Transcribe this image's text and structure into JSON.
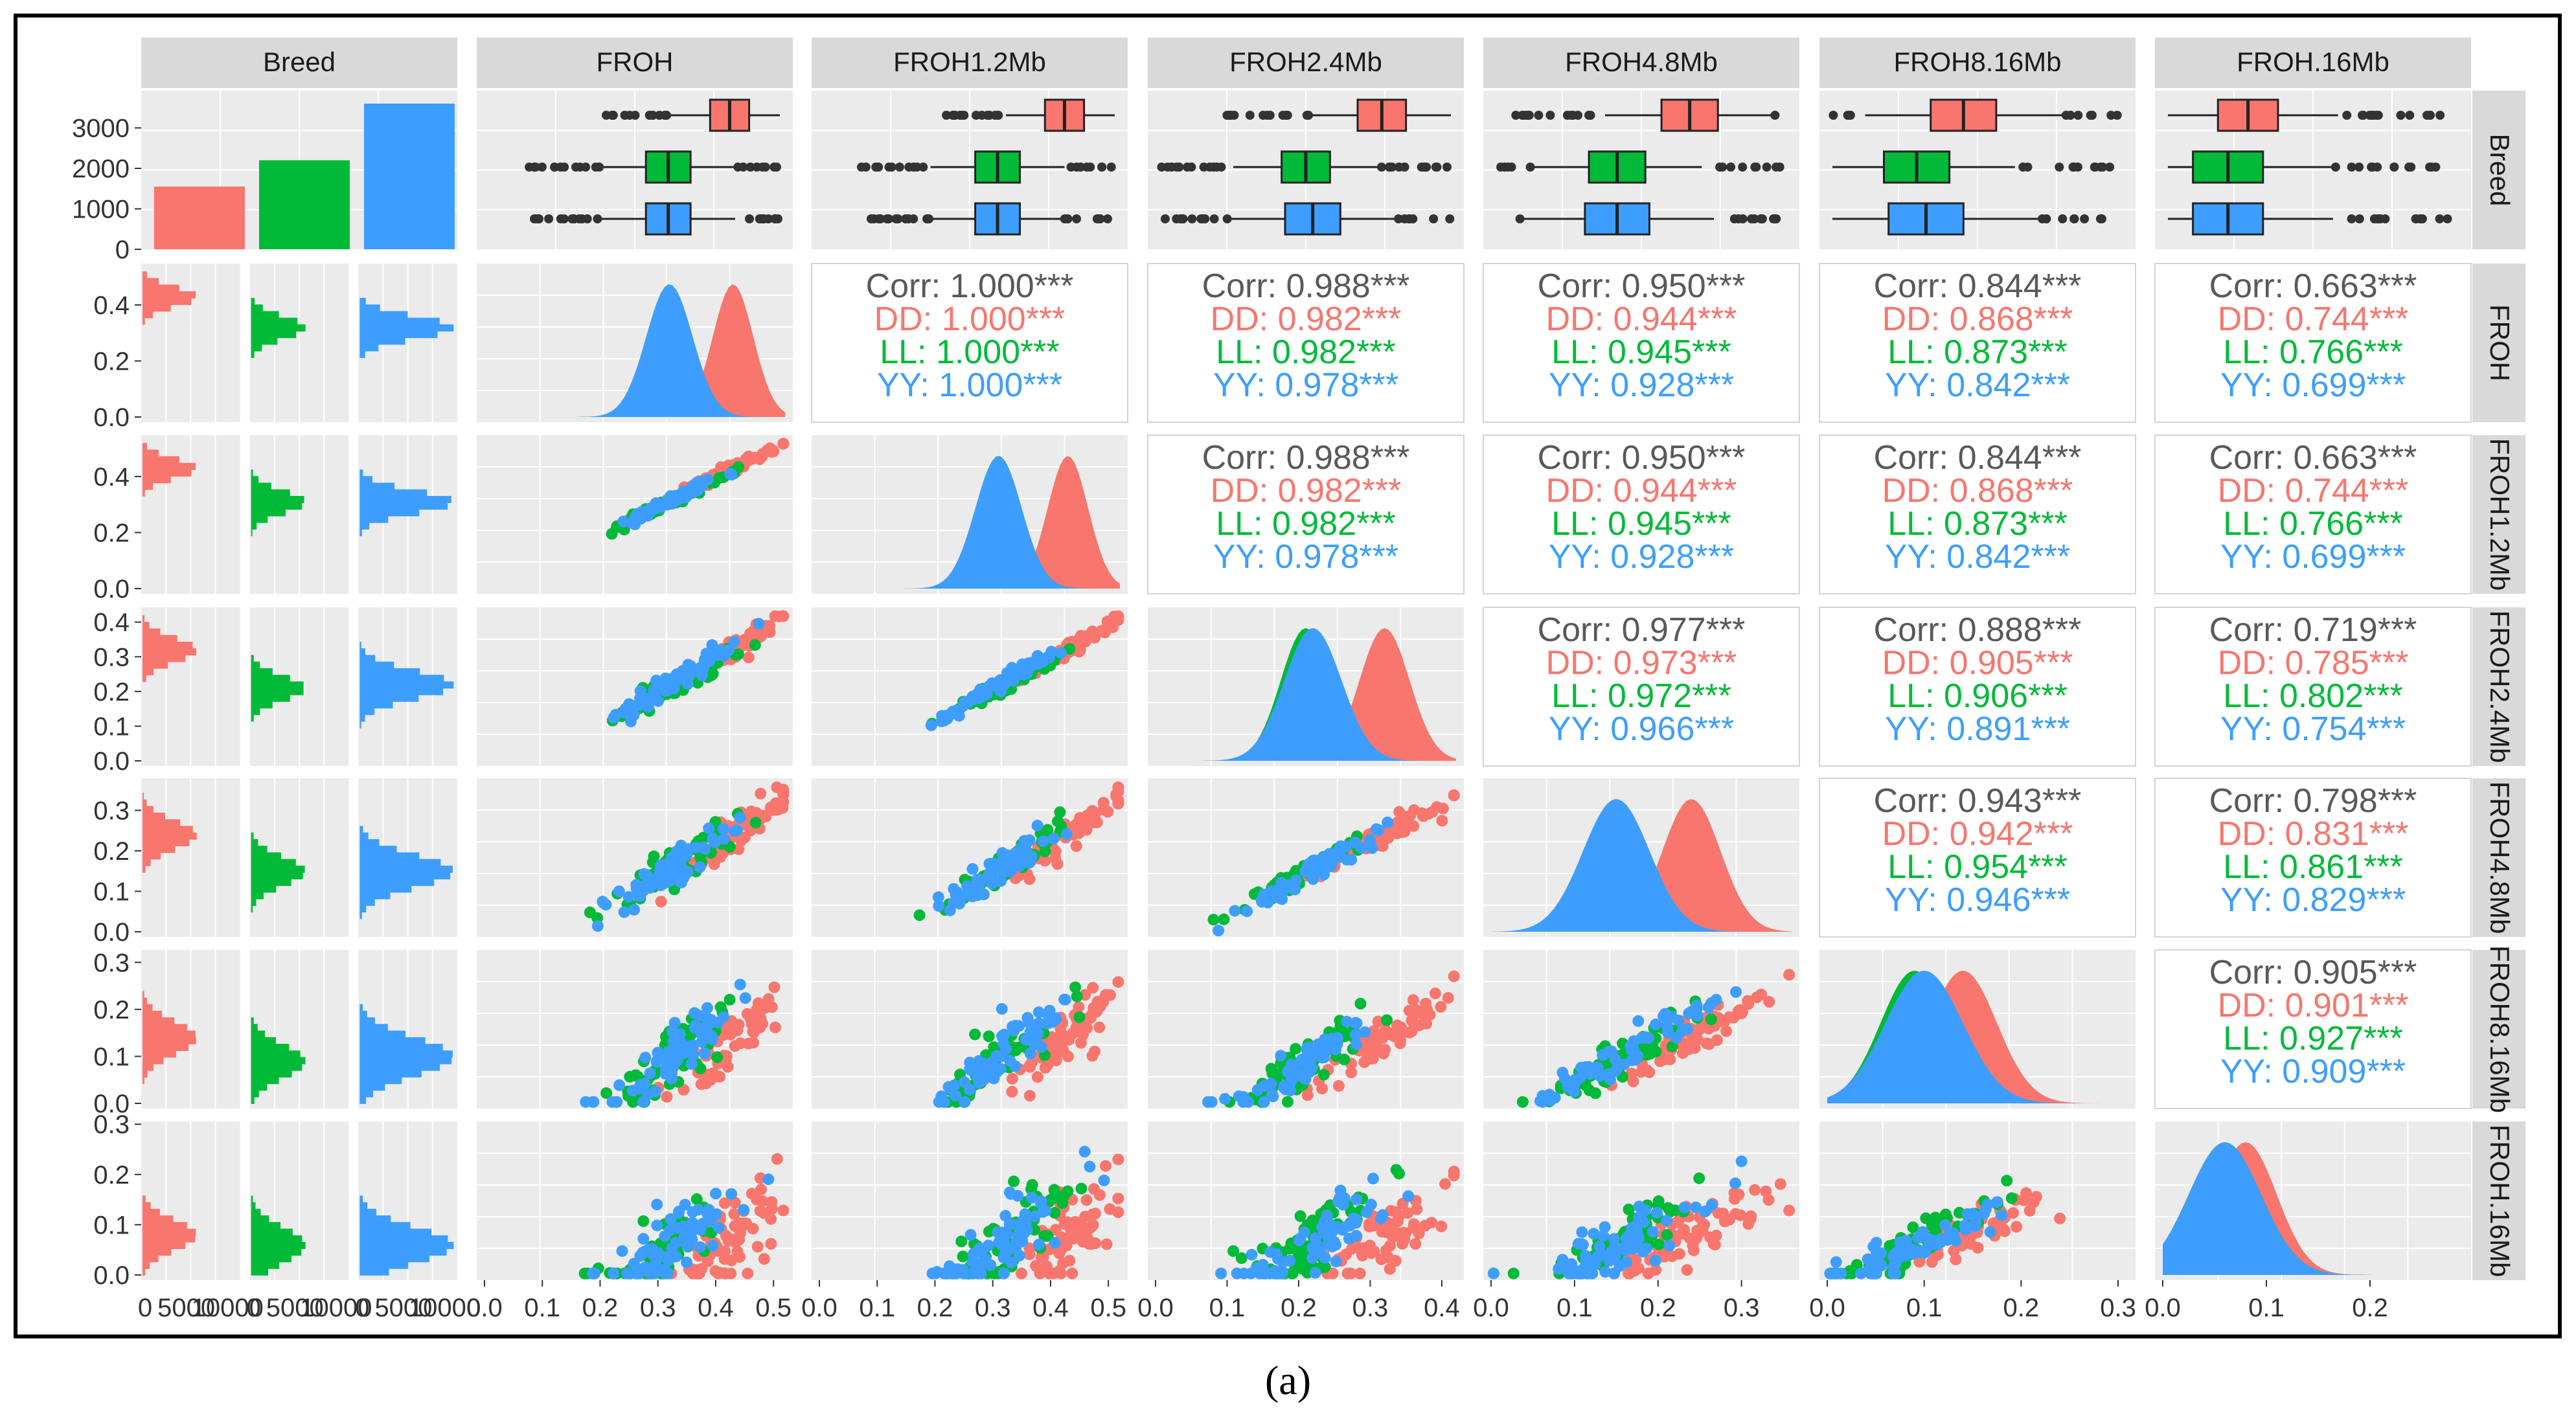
{
  "caption": "(a)",
  "chart_data": {
    "type": "scatter-matrix",
    "variables": [
      "Breed",
      "FROH",
      "FROH1.2Mb",
      "FROH2.4Mb",
      "FROH4.8Mb",
      "FROH8.16Mb",
      "FROH.16Mb"
    ],
    "row_strip_labels": [
      "Breed",
      "FROH",
      "FROH1.2Mb",
      "FROH2.4Mb",
      "FROH4.8Mb",
      "FROH8.16Mb",
      "FROH.16Mb"
    ],
    "groups": [
      {
        "name": "DD",
        "color": "#F8766D"
      },
      {
        "name": "LL",
        "color": "#00BA38"
      },
      {
        "name": "YY",
        "color": "#3D9EFF"
      }
    ],
    "breed_counts": {
      "DD": 1550,
      "LL": 2200,
      "YY": 3600,
      "ylim": [
        0,
        3600
      ],
      "yticks": [
        "3000",
        "2000",
        "1000",
        "0"
      ]
    },
    "variable_ranges": {
      "FROH": [
        0.0,
        0.52
      ],
      "FROH1.2Mb": [
        0.0,
        0.52
      ],
      "FROH2.4Mb": [
        0.0,
        0.42
      ],
      "FROH4.8Mb": [
        0.0,
        0.36
      ],
      "FROH8.16Mb": [
        0.0,
        0.31
      ],
      "FROH.16Mb": [
        0.0,
        0.29
      ]
    },
    "x_tick_labels": [
      [
        "0",
        "5000",
        "10000"
      ],
      [
        "0.0",
        "0.1",
        "0.2",
        "0.3",
        "0.4",
        "0.5"
      ],
      [
        "0.0",
        "0.1",
        "0.2",
        "0.3",
        "0.4",
        "0.5"
      ],
      [
        "0.0",
        "0.1",
        "0.2",
        "0.3",
        "0.4"
      ],
      [
        "0.0",
        "0.1",
        "0.2",
        "0.3"
      ],
      [
        "0.0",
        "0.1",
        "0.2",
        "0.3"
      ],
      [
        "0.0",
        "0.1",
        "0.2"
      ]
    ],
    "y_tick_labels": [
      [
        "0.4",
        "0.2",
        "0.0"
      ],
      [
        "0.4",
        "0.2",
        "0.0"
      ],
      [
        "0.4",
        "0.3",
        "0.2",
        "0.1",
        "0.0"
      ],
      [
        "0.3",
        "0.2",
        "0.1",
        "0.0"
      ],
      [
        "0.3",
        "0.2",
        "0.1",
        "0.0"
      ],
      [
        "0.3",
        "0.2",
        "0.1",
        "0.0"
      ]
    ],
    "means": {
      "DD": [
        0.43,
        0.43,
        0.32,
        0.24,
        0.14,
        0.08
      ],
      "LL": [
        0.32,
        0.31,
        0.21,
        0.15,
        0.09,
        0.06
      ],
      "YY": [
        0.32,
        0.31,
        0.22,
        0.15,
        0.1,
        0.06
      ]
    },
    "sds": {
      "DD": [
        0.035,
        0.035,
        0.035,
        0.035,
        0.035,
        0.03
      ],
      "LL": [
        0.04,
        0.04,
        0.035,
        0.035,
        0.035,
        0.035
      ],
      "YY": [
        0.04,
        0.04,
        0.04,
        0.04,
        0.04,
        0.035
      ]
    },
    "correlations": [
      {
        "row": 1,
        "col": 2,
        "corr": "Corr: 1.000***",
        "DD": "DD: 1.000***",
        "LL": "LL: 1.000***",
        "YY": "YY: 1.000***"
      },
      {
        "row": 1,
        "col": 3,
        "corr": "Corr: 0.988***",
        "DD": "DD: 0.982***",
        "LL": "LL: 0.982***",
        "YY": "YY: 0.978***"
      },
      {
        "row": 1,
        "col": 4,
        "corr": "Corr: 0.950***",
        "DD": "DD: 0.944***",
        "LL": "LL: 0.945***",
        "YY": "YY: 0.928***"
      },
      {
        "row": 1,
        "col": 5,
        "corr": "Corr: 0.844***",
        "DD": "DD: 0.868***",
        "LL": "LL: 0.873***",
        "YY": "YY: 0.842***"
      },
      {
        "row": 1,
        "col": 6,
        "corr": "Corr: 0.663***",
        "DD": "DD: 0.744***",
        "LL": "LL: 0.766***",
        "YY": "YY: 0.699***"
      },
      {
        "row": 2,
        "col": 3,
        "corr": "Corr: 0.988***",
        "DD": "DD: 0.982***",
        "LL": "LL: 0.982***",
        "YY": "YY: 0.978***"
      },
      {
        "row": 2,
        "col": 4,
        "corr": "Corr: 0.950***",
        "DD": "DD: 0.944***",
        "LL": "LL: 0.945***",
        "YY": "YY: 0.928***"
      },
      {
        "row": 2,
        "col": 5,
        "corr": "Corr: 0.844***",
        "DD": "DD: 0.868***",
        "LL": "LL: 0.873***",
        "YY": "YY: 0.842***"
      },
      {
        "row": 2,
        "col": 6,
        "corr": "Corr: 0.663***",
        "DD": "DD: 0.744***",
        "LL": "LL: 0.766***",
        "YY": "YY: 0.699***"
      },
      {
        "row": 3,
        "col": 4,
        "corr": "Corr: 0.977***",
        "DD": "DD: 0.973***",
        "LL": "LL: 0.972***",
        "YY": "YY: 0.966***"
      },
      {
        "row": 3,
        "col": 5,
        "corr": "Corr: 0.888***",
        "DD": "DD: 0.905***",
        "LL": "LL: 0.906***",
        "YY": "YY: 0.891***"
      },
      {
        "row": 3,
        "col": 6,
        "corr": "Corr: 0.719***",
        "DD": "DD: 0.785***",
        "LL": "LL: 0.802***",
        "YY": "YY: 0.754***"
      },
      {
        "row": 4,
        "col": 5,
        "corr": "Corr: 0.943***",
        "DD": "DD: 0.942***",
        "LL": "LL: 0.954***",
        "YY": "YY: 0.946***"
      },
      {
        "row": 4,
        "col": 6,
        "corr": "Corr: 0.798***",
        "DD": "DD: 0.831***",
        "LL": "LL: 0.861***",
        "YY": "YY: 0.829***"
      },
      {
        "row": 5,
        "col": 6,
        "corr": "Corr: 0.905***",
        "DD": "DD: 0.901***",
        "LL": "LL: 0.927***",
        "YY": "YY: 0.909***"
      }
    ]
  }
}
